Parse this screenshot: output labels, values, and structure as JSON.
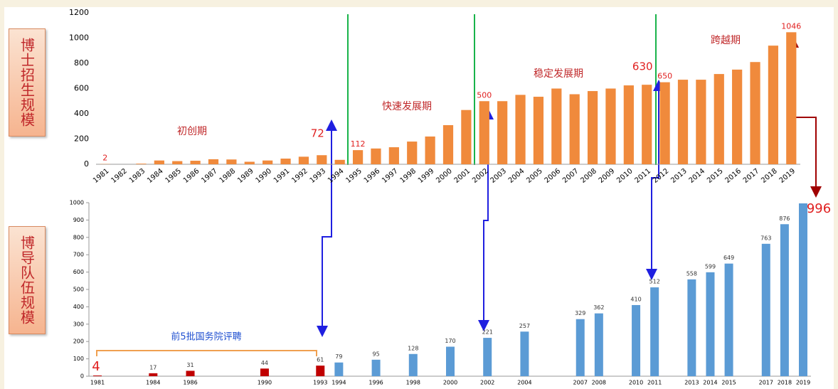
{
  "chart_data": [
    {
      "type": "bar",
      "side_label": "博士招生规模",
      "categories": [
        "1981",
        "1982",
        "1983",
        "1984",
        "1985",
        "1986",
        "1987",
        "1988",
        "1989",
        "1990",
        "1991",
        "1992",
        "1993",
        "1994",
        "1995",
        "1996",
        "1997",
        "1998",
        "1999",
        "2000",
        "2001",
        "2002",
        "2003",
        "2004",
        "2005",
        "2006",
        "2007",
        "2008",
        "2009",
        "2010",
        "2011",
        "2012",
        "2013",
        "2014",
        "2015",
        "2016",
        "2017",
        "2018",
        "2019"
      ],
      "values": [
        2,
        0,
        5,
        30,
        25,
        28,
        40,
        38,
        20,
        30,
        45,
        60,
        72,
        35,
        112,
        125,
        135,
        180,
        220,
        310,
        430,
        500,
        500,
        550,
        535,
        600,
        555,
        580,
        600,
        625,
        630,
        650,
        670,
        670,
        715,
        750,
        810,
        940,
        1046
      ],
      "value_labels": [
        "2",
        null,
        null,
        null,
        null,
        null,
        null,
        null,
        null,
        null,
        null,
        null,
        "72",
        null,
        "112",
        null,
        null,
        null,
        null,
        null,
        null,
        "500",
        null,
        null,
        null,
        null,
        null,
        null,
        null,
        null,
        "630",
        "650",
        null,
        null,
        null,
        null,
        null,
        null,
        "1046"
      ],
      "color": "#f08a3c",
      "ylim": [
        0,
        1200
      ],
      "yticks": [
        0,
        200,
        400,
        600,
        800,
        1000,
        1200
      ],
      "phases": [
        "初创期",
        "快速发展期",
        "稳定发展期",
        "跨越期"
      ]
    },
    {
      "type": "bar",
      "side_label": "博导队伍规模",
      "x": [
        1981,
        1984,
        1986,
        1990,
        1993,
        1994,
        1996,
        1998,
        2000,
        2002,
        2004,
        2007,
        2008,
        2010,
        2011,
        2013,
        2014,
        2015,
        2017,
        2018,
        2019
      ],
      "values": [
        4,
        17,
        31,
        44,
        61,
        79,
        95,
        128,
        170,
        221,
        257,
        329,
        362,
        410,
        512,
        558,
        599,
        649,
        763,
        876,
        996
      ],
      "colors": [
        "#c00000",
        "#c00000",
        "#c00000",
        "#c00000",
        "#c00000",
        "#5b9bd5",
        "#5b9bd5",
        "#5b9bd5",
        "#5b9bd5",
        "#5b9bd5",
        "#5b9bd5",
        "#5b9bd5",
        "#5b9bd5",
        "#5b9bd5",
        "#5b9bd5",
        "#5b9bd5",
        "#5b9bd5",
        "#5b9bd5",
        "#5b9bd5",
        "#5b9bd5",
        "#5b9bd5"
      ],
      "xlim": [
        1981,
        2019
      ],
      "ylim": [
        0,
        1000
      ],
      "yticks": [
        0,
        100,
        200,
        300,
        400,
        500,
        600,
        700,
        800,
        900,
        1000
      ],
      "bracket_label": "前5批国务院评聘"
    }
  ]
}
